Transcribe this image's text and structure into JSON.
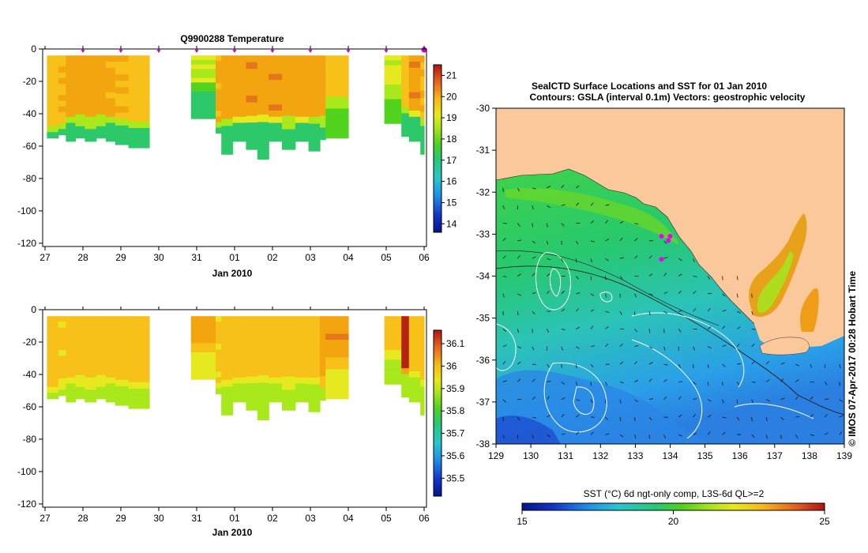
{
  "chart_data": [
    {
      "type": "heatmap",
      "id": "temperature-section",
      "title": "Q9900288  Temperature",
      "xlabel": "Jan 2010",
      "ylabel": "",
      "x_tick_labels": [
        "27",
        "28",
        "29",
        "30",
        "31",
        "01",
        "02",
        "03",
        "04",
        "05",
        "06"
      ],
      "y_ticks": [
        0,
        -20,
        -40,
        -60,
        -80,
        -100,
        -120
      ],
      "ylim": [
        -122,
        0
      ],
      "colorbar": {
        "min": 13.6,
        "max": 21.5,
        "ticks": [
          14,
          15,
          16,
          17,
          18,
          19,
          20,
          21
        ]
      },
      "profile_marker_days": [
        1,
        2,
        3,
        4,
        5,
        6,
        7,
        8,
        9,
        10
      ],
      "profile_marker_color": "#cc00cc",
      "palette": [
        "#0a0f8c",
        "#1d43d6",
        "#1fa0f0",
        "#1ec8c8",
        "#2dc86a",
        "#52d41e",
        "#a9e81b",
        "#e6e820",
        "#f7c11a",
        "#f3a50f",
        "#e4761c",
        "#b62314"
      ],
      "profiles": [
        {
          "x0": 0.05,
          "x1": 0.35,
          "bottom": -55,
          "thermo": -46,
          "top_val": 19.4,
          "deep_val": 16.5
        },
        {
          "x0": 0.35,
          "x1": 0.55,
          "bottom": -53,
          "thermo": -45,
          "top_val": 19.5,
          "deep_val": 16.6
        },
        {
          "x0": 0.55,
          "x1": 0.8,
          "bottom": -57,
          "thermo": -42,
          "top_val": 19.7,
          "deep_val": 16.4
        },
        {
          "x0": 0.8,
          "x1": 1.05,
          "bottom": -55,
          "thermo": -42,
          "top_val": 19.8,
          "deep_val": 16.5
        },
        {
          "x0": 1.05,
          "x1": 1.35,
          "bottom": -57,
          "thermo": -43,
          "top_val": 19.7,
          "deep_val": 16.6
        },
        {
          "x0": 1.35,
          "x1": 1.6,
          "bottom": -55,
          "thermo": -42,
          "top_val": 19.9,
          "deep_val": 16.5
        },
        {
          "x0": 1.6,
          "x1": 1.85,
          "bottom": -57,
          "thermo": -41,
          "top_val": 19.6,
          "deep_val": 16.4
        },
        {
          "x0": 1.85,
          "x1": 2.2,
          "bottom": -59,
          "thermo": -42,
          "top_val": 19.5,
          "deep_val": 16.5
        },
        {
          "x0": 2.2,
          "x1": 2.75,
          "bottom": -61,
          "thermo": -44,
          "top_val": 19.4,
          "deep_val": 16.7
        },
        {
          "x0": 3.85,
          "x1": 4.5,
          "bottom": -43,
          "thermo": -22,
          "top_val": 18.2,
          "deep_val": 16.8
        },
        {
          "x0": 4.5,
          "x1": 4.65,
          "bottom": -52,
          "thermo": -44,
          "top_val": 19.6,
          "deep_val": 16.7
        },
        {
          "x0": 4.65,
          "x1": 4.95,
          "bottom": -65,
          "thermo": -42,
          "top_val": 19.8,
          "deep_val": 16.4
        },
        {
          "x0": 4.95,
          "x1": 5.3,
          "bottom": -57,
          "thermo": -41,
          "top_val": 20.0,
          "deep_val": 16.5
        },
        {
          "x0": 5.3,
          "x1": 5.6,
          "bottom": -62,
          "thermo": -42,
          "top_val": 20.1,
          "deep_val": 16.4
        },
        {
          "x0": 5.6,
          "x1": 5.9,
          "bottom": -68,
          "thermo": -42,
          "top_val": 20.0,
          "deep_val": 16.5
        },
        {
          "x0": 5.9,
          "x1": 6.25,
          "bottom": -57,
          "thermo": -42,
          "top_val": 20.1,
          "deep_val": 16.4
        },
        {
          "x0": 6.25,
          "x1": 6.6,
          "bottom": -62,
          "thermo": -43,
          "top_val": 19.9,
          "deep_val": 16.5
        },
        {
          "x0": 6.6,
          "x1": 6.95,
          "bottom": -57,
          "thermo": -41,
          "top_val": 20.0,
          "deep_val": 16.6
        },
        {
          "x0": 6.95,
          "x1": 7.25,
          "bottom": -63,
          "thermo": -42,
          "top_val": 19.8,
          "deep_val": 16.5
        },
        {
          "x0": 7.25,
          "x1": 7.4,
          "bottom": -56,
          "thermo": -42,
          "top_val": 19.7,
          "deep_val": 16.7
        },
        {
          "x0": 7.4,
          "x1": 8.0,
          "bottom": -55,
          "thermo": -30,
          "top_val": 19.2,
          "deep_val": 16.9
        },
        {
          "x0": 8.95,
          "x1": 9.4,
          "bottom": -46,
          "thermo": -25,
          "top_val": 18.3,
          "deep_val": 16.9
        },
        {
          "x0": 9.4,
          "x1": 9.6,
          "bottom": -54,
          "thermo": -35,
          "top_val": 19.2,
          "deep_val": 16.7
        },
        {
          "x0": 9.6,
          "x1": 9.9,
          "bottom": -57,
          "thermo": -38,
          "top_val": 20.1,
          "deep_val": 16.8
        },
        {
          "x0": 9.9,
          "x1": 10.0,
          "bottom": -65,
          "thermo": -42,
          "top_val": 19.5,
          "deep_val": 16.5
        }
      ]
    },
    {
      "type": "heatmap",
      "id": "salinity-section",
      "title": "",
      "xlabel": "Jan 2010",
      "ylabel": "",
      "x_tick_labels": [
        "27",
        "28",
        "29",
        "30",
        "31",
        "01",
        "02",
        "03",
        "04",
        "05",
        "06"
      ],
      "y_ticks": [
        0,
        -20,
        -40,
        -60,
        -80,
        -100,
        -120
      ],
      "ylim": [
        -122,
        0
      ],
      "colorbar": {
        "min": 35.42,
        "max": 36.16,
        "ticks": [
          35.5,
          35.6,
          35.7,
          35.8,
          35.9,
          36,
          36.1
        ]
      },
      "palette": [
        "#0a0f8c",
        "#1d43d6",
        "#1fa0f0",
        "#1ec8c8",
        "#2dc86a",
        "#52d41e",
        "#a9e81b",
        "#e6e820",
        "#f7c11a",
        "#f3a50f",
        "#e4761c",
        "#b62314"
      ],
      "profiles": [
        {
          "x0": 0.05,
          "x1": 0.35,
          "bottom": -55,
          "thermo": -46,
          "top_val": 35.95,
          "deep_val": 35.84
        },
        {
          "x0": 0.35,
          "x1": 0.55,
          "bottom": -53,
          "thermo": -45,
          "top_val": 35.92,
          "deep_val": 35.83
        },
        {
          "x0": 0.55,
          "x1": 0.8,
          "bottom": -57,
          "thermo": -42,
          "top_val": 35.95,
          "deep_val": 35.83
        },
        {
          "x0": 0.8,
          "x1": 1.05,
          "bottom": -55,
          "thermo": -42,
          "top_val": 35.96,
          "deep_val": 35.84
        },
        {
          "x0": 1.05,
          "x1": 1.35,
          "bottom": -57,
          "thermo": -43,
          "top_val": 35.94,
          "deep_val": 35.84
        },
        {
          "x0": 1.35,
          "x1": 1.6,
          "bottom": -55,
          "thermo": -42,
          "top_val": 35.96,
          "deep_val": 35.83
        },
        {
          "x0": 1.6,
          "x1": 1.85,
          "bottom": -57,
          "thermo": -41,
          "top_val": 35.95,
          "deep_val": 35.84
        },
        {
          "x0": 1.85,
          "x1": 2.2,
          "bottom": -59,
          "thermo": -42,
          "top_val": 35.94,
          "deep_val": 35.84
        },
        {
          "x0": 2.2,
          "x1": 2.75,
          "bottom": -61,
          "thermo": -44,
          "top_val": 35.95,
          "deep_val": 35.85
        },
        {
          "x0": 3.85,
          "x1": 4.5,
          "bottom": -43,
          "thermo": -22,
          "top_val": 36.02,
          "deep_val": 35.86
        },
        {
          "x0": 4.5,
          "x1": 4.65,
          "bottom": -52,
          "thermo": -44,
          "top_val": 35.92,
          "deep_val": 35.83
        },
        {
          "x0": 4.65,
          "x1": 4.95,
          "bottom": -65,
          "thermo": -42,
          "top_val": 35.95,
          "deep_val": 35.84
        },
        {
          "x0": 4.95,
          "x1": 5.3,
          "bottom": -57,
          "thermo": -41,
          "top_val": 35.95,
          "deep_val": 35.84
        },
        {
          "x0": 5.3,
          "x1": 5.6,
          "bottom": -62,
          "thermo": -42,
          "top_val": 35.94,
          "deep_val": 35.83
        },
        {
          "x0": 5.6,
          "x1": 5.9,
          "bottom": -68,
          "thermo": -42,
          "top_val": 35.95,
          "deep_val": 35.85
        },
        {
          "x0": 5.9,
          "x1": 6.25,
          "bottom": -57,
          "thermo": -42,
          "top_val": 35.94,
          "deep_val": 35.84
        },
        {
          "x0": 6.25,
          "x1": 6.6,
          "bottom": -62,
          "thermo": -43,
          "top_val": 35.96,
          "deep_val": 35.84
        },
        {
          "x0": 6.6,
          "x1": 6.95,
          "bottom": -57,
          "thermo": -41,
          "top_val": 35.95,
          "deep_val": 35.85
        },
        {
          "x0": 6.95,
          "x1": 7.25,
          "bottom": -63,
          "thermo": -42,
          "top_val": 35.96,
          "deep_val": 35.84
        },
        {
          "x0": 7.25,
          "x1": 7.4,
          "bottom": -56,
          "thermo": -42,
          "top_val": 36.0,
          "deep_val": 35.84
        },
        {
          "x0": 7.4,
          "x1": 8.0,
          "bottom": -55,
          "thermo": -30,
          "top_val": 36.03,
          "deep_val": 35.86
        },
        {
          "x0": 8.95,
          "x1": 9.4,
          "bottom": -46,
          "thermo": -25,
          "top_val": 35.95,
          "deep_val": 35.85
        },
        {
          "x0": 9.4,
          "x1": 9.6,
          "bottom": -54,
          "thermo": -35,
          "top_val": 36.12,
          "deep_val": 35.84
        },
        {
          "x0": 9.6,
          "x1": 9.9,
          "bottom": -57,
          "thermo": -38,
          "top_val": 35.95,
          "deep_val": 35.8
        },
        {
          "x0": 9.9,
          "x1": 10.0,
          "bottom": -65,
          "thermo": -42,
          "top_val": 35.93,
          "deep_val": 35.82
        }
      ]
    },
    {
      "type": "heatmap",
      "id": "sst-map",
      "title_line1": "SealCTD Surface Locations and SST for 01 Jan 2010",
      "title_line2": "Contours: GSLA (interval 0.1m) Vectors: geostrophic velocity",
      "xlim": [
        129,
        139
      ],
      "ylim": [
        -38,
        -30
      ],
      "x_ticks": [
        129,
        130,
        131,
        132,
        133,
        134,
        135,
        136,
        137,
        138,
        139
      ],
      "y_ticks": [
        -30,
        -31,
        -32,
        -33,
        -34,
        -35,
        -36,
        -37,
        -38
      ],
      "colorbar_label": "SST (°C) 6d ngt-only comp, L3S-6d QL>=2",
      "colorbar": {
        "min": 15,
        "max": 25,
        "ticks": [
          15,
          20,
          25
        ]
      },
      "land_color": "#fbc89b",
      "seal_locations": [
        [
          133.75,
          -33.05
        ],
        [
          134.0,
          -33.05
        ],
        [
          133.95,
          -33.15
        ],
        [
          133.75,
          -33.6
        ]
      ],
      "seal_marker_color": "#ee00ee",
      "credit": "© IMOS 07-Apr-2017 00:28 Hobart Time"
    }
  ]
}
